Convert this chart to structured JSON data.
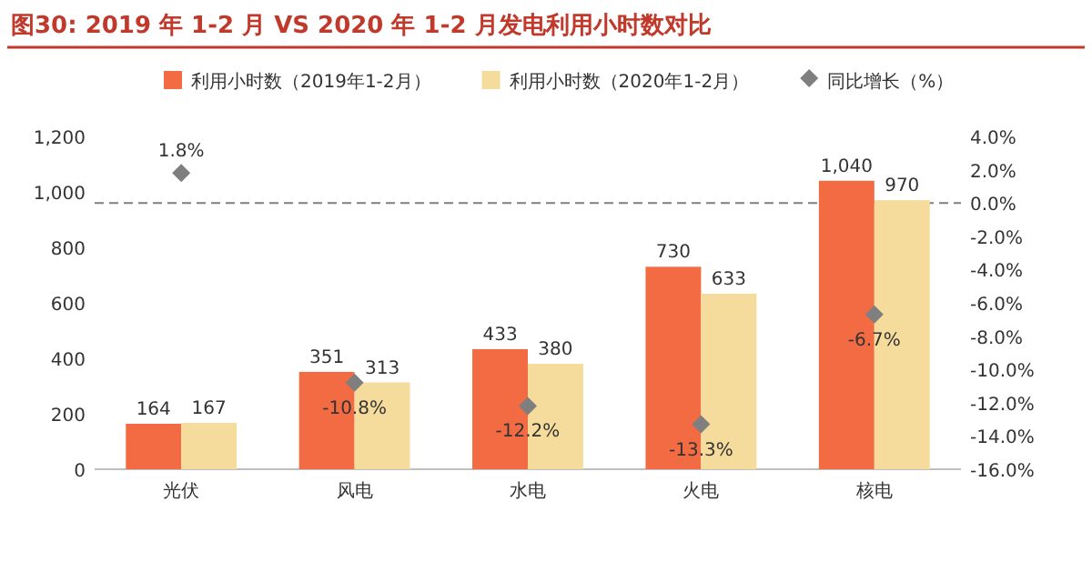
{
  "chart_data": {
    "type": "bar",
    "title": "图30:  2019 年 1-2 月 VS 2020 年 1-2 月发电利用小时数对比",
    "categories": [
      "光伏",
      "风电",
      "水电",
      "火电",
      "核电"
    ],
    "series": [
      {
        "name": "利用小时数（2019年1-2月）",
        "color": "#f26b43",
        "values": [
          164,
          351,
          433,
          730,
          1040
        ],
        "value_labels": [
          "164",
          "351",
          "433",
          "730",
          "1,040"
        ]
      },
      {
        "name": "利用小时数（2020年1-2月）",
        "color": "#f6dc9c",
        "values": [
          167,
          313,
          380,
          633,
          970
        ],
        "value_labels": [
          "167",
          "313",
          "380",
          "633",
          "970"
        ]
      },
      {
        "name": "同比增长（%）",
        "type": "scatter",
        "axis": "y2",
        "color": "#7f7f7f",
        "marker": "diamond",
        "values": [
          1.8,
          -10.8,
          -12.2,
          -13.3,
          -6.7
        ],
        "value_labels": [
          "1.8%",
          "-10.8%",
          "-12.2%",
          "-13.3%",
          "-6.7%"
        ]
      }
    ],
    "ylim": [
      0,
      1200
    ],
    "yticks": [
      0,
      {
        "value": 200,
        "label": "200"
      },
      {
        "value": 400,
        "label": "400"
      },
      {
        "value": 600,
        "label": "600"
      },
      {
        "value": 800,
        "label": "800"
      },
      {
        "value": 1000,
        "label": "1,000"
      },
      {
        "value": 1200,
        "label": "1,200"
      }
    ],
    "y2lim": [
      -16,
      4
    ],
    "y2ticks": [
      {
        "value": -16,
        "label": "-16.0%"
      },
      {
        "value": -14,
        "label": "-14.0%"
      },
      {
        "value": -12,
        "label": "-12.0%"
      },
      {
        "value": -10,
        "label": "-10.0%"
      },
      {
        "value": -8,
        "label": "-8.0%"
      },
      {
        "value": -6,
        "label": "-6.0%"
      },
      {
        "value": -4,
        "label": "-4.0%"
      },
      {
        "value": -2,
        "label": "-2.0%"
      },
      {
        "value": 0,
        "label": "0.0%"
      },
      {
        "value": 2,
        "label": "2.0%"
      },
      {
        "value": 4,
        "label": "4.0%"
      }
    ],
    "ref_lines": [
      {
        "axis": "y2",
        "value": 0,
        "color": "#7f7f7f",
        "line_style": "dashed"
      }
    ],
    "legend": "top",
    "grid": false
  }
}
